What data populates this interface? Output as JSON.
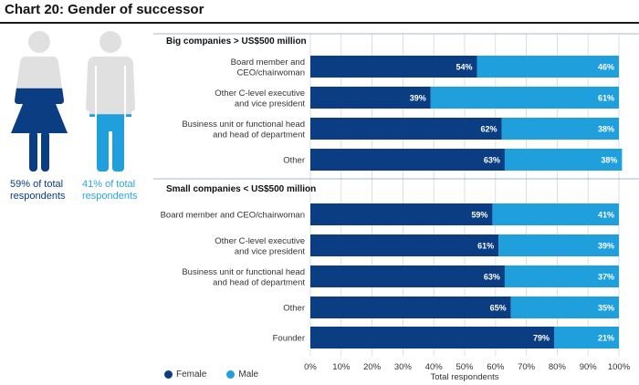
{
  "title": "Chart 20: Gender of successor",
  "figures": {
    "female_label": "59% of total respondents",
    "male_label": "41% of total respondents",
    "female_fill": 0.59,
    "male_fill": 0.41
  },
  "colors": {
    "female": "#0a3d82",
    "male": "#1f9fdb",
    "figure_gray": "#e0e0e0",
    "grid": "#cfd8e0"
  },
  "chart_data": {
    "type": "bar",
    "orientation": "horizontal-stacked",
    "xlabel": "Total respondents",
    "xlim": [
      0,
      100
    ],
    "ticks": [
      "0%",
      "10%",
      "20%",
      "30%",
      "40%",
      "50%",
      "60%",
      "70%",
      "80%",
      "90%",
      "100%"
    ],
    "legend": [
      "Female",
      "Male"
    ],
    "sections": [
      {
        "title": "Big companies > US$500 million",
        "rows": [
          {
            "label": [
              "Board member and",
              "CEO/chairwoman"
            ],
            "female": 54,
            "male": 46
          },
          {
            "label": [
              "Other C-level executive",
              "and vice president"
            ],
            "female": 39,
            "male": 61
          },
          {
            "label": [
              "Business unit or functional head",
              "and head of department"
            ],
            "female": 62,
            "male": 38
          },
          {
            "label": [
              "Other"
            ],
            "female": 63,
            "male": 38
          }
        ]
      },
      {
        "title": "Small companies < US$500 million",
        "rows": [
          {
            "label": [
              "Board member and CEO/chairwoman"
            ],
            "female": 59,
            "male": 41
          },
          {
            "label": [
              "Other C-level executive",
              "and vice president"
            ],
            "female": 61,
            "male": 39
          },
          {
            "label": [
              "Business unit or functional head",
              "and head of department"
            ],
            "female": 63,
            "male": 37
          },
          {
            "label": [
              "Other"
            ],
            "female": 65,
            "male": 35
          },
          {
            "label": [
              "Founder"
            ],
            "female": 79,
            "male": 21
          }
        ]
      }
    ]
  }
}
